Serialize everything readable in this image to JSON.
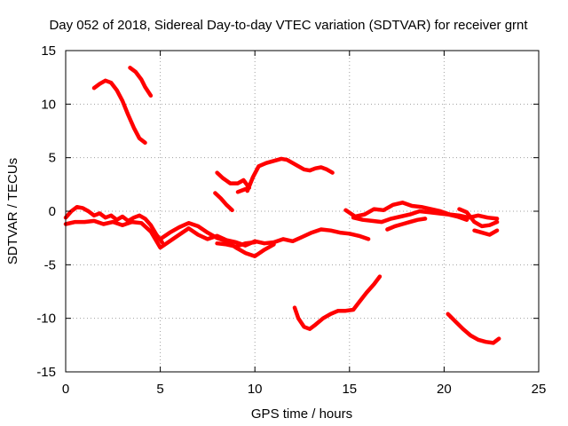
{
  "chart_data": {
    "type": "line",
    "title": "Day 052 of 2018, Sidereal Day-to-day VTEC variation (SDTVAR) for receiver grnt",
    "xlabel": "GPS time / hours",
    "ylabel": "SDTVAR / TECUs",
    "xlim": [
      0,
      25
    ],
    "ylim": [
      -15,
      15
    ],
    "xticks": [
      0,
      5,
      10,
      15,
      20,
      25
    ],
    "yticks": [
      -15,
      -10,
      -5,
      0,
      5,
      10,
      15
    ],
    "grid": true,
    "line_color": "#ff0000",
    "series": [
      {
        "name": "arc-1",
        "x": [
          1.5,
          1.8,
          2.1,
          2.4,
          2.7,
          3.0,
          3.3,
          3.6,
          3.9,
          4.2
        ],
        "y": [
          11.5,
          11.9,
          12.2,
          12.0,
          11.3,
          10.3,
          9.0,
          7.8,
          6.8,
          6.4
        ]
      },
      {
        "name": "arc-2",
        "x": [
          3.4,
          3.7,
          4.0,
          4.2,
          4.5
        ],
        "y": [
          13.4,
          13.0,
          12.3,
          11.6,
          10.8
        ]
      },
      {
        "name": "arc-3",
        "x": [
          8.0,
          8.3,
          8.7,
          9.1,
          9.4,
          9.7,
          9.4,
          9.1
        ],
        "y": [
          3.6,
          3.1,
          2.6,
          2.6,
          2.9,
          2.2,
          2.0,
          1.8
        ]
      },
      {
        "name": "arc-4",
        "x": [
          7.9,
          8.2,
          8.5,
          8.8
        ],
        "y": [
          1.7,
          1.2,
          0.6,
          0.1
        ]
      },
      {
        "name": "arc-5",
        "x": [
          9.6,
          9.9,
          10.2,
          10.6,
          11.0,
          11.4,
          11.7,
          12.0,
          12.3,
          12.6,
          12.9,
          13.2,
          13.5,
          13.8,
          14.1
        ],
        "y": [
          1.9,
          3.2,
          4.2,
          4.5,
          4.7,
          4.9,
          4.8,
          4.5,
          4.2,
          3.9,
          3.8,
          4.0,
          4.1,
          3.9,
          3.6
        ]
      },
      {
        "name": "arc-6",
        "x": [
          0.0,
          0.5,
          1.0,
          1.5,
          2.0,
          2.5,
          3.0,
          3.5,
          4.0,
          4.5,
          5.0,
          5.5,
          6.0,
          6.5,
          7.0,
          7.5,
          8.0,
          8.5,
          9.0,
          9.5,
          10.0,
          10.5,
          11.0,
          11.5,
          12.0,
          12.5,
          13.0,
          13.5,
          14.0,
          14.5,
          15.0,
          15.5,
          16.0
        ],
        "y": [
          -1.2,
          -1.0,
          -1.0,
          -0.9,
          -1.2,
          -1.0,
          -1.3,
          -1.0,
          -1.1,
          -1.9,
          -3.4,
          -2.8,
          -2.2,
          -1.6,
          -2.2,
          -2.6,
          -2.3,
          -2.7,
          -2.9,
          -3.2,
          -2.8,
          -3.0,
          -2.9,
          -2.6,
          -2.8,
          -2.4,
          -2.0,
          -1.7,
          -1.8,
          -2.0,
          -2.1,
          -2.3,
          -2.6
        ]
      },
      {
        "name": "arc-7",
        "x": [
          0.0,
          0.3,
          0.6,
          0.9,
          1.2,
          1.5,
          1.8,
          2.1,
          2.4,
          2.7,
          3.0,
          3.3,
          3.6,
          3.9,
          4.2,
          4.5,
          4.8,
          5.1
        ],
        "y": [
          -0.6,
          0.0,
          0.4,
          0.3,
          0.0,
          -0.4,
          -0.2,
          -0.6,
          -0.4,
          -0.8,
          -0.5,
          -0.9,
          -0.6,
          -0.4,
          -0.7,
          -1.3,
          -2.2,
          -2.9
        ]
      },
      {
        "name": "arc-8",
        "x": [
          5.0,
          5.5,
          6.0,
          6.5,
          7.0,
          7.5,
          8.0,
          8.5,
          9.0,
          9.5,
          10.0,
          10.5,
          11.0
        ],
        "y": [
          -2.6,
          -2.0,
          -1.5,
          -1.1,
          -1.4,
          -2.0,
          -2.5,
          -2.8,
          -3.4,
          -3.9,
          -4.2,
          -3.6,
          -3.1
        ]
      },
      {
        "name": "arc-9",
        "x": [
          8.0,
          8.5,
          9.0,
          9.5,
          10.0
        ],
        "y": [
          -3.0,
          -3.1,
          -3.3,
          -3.0,
          -2.9
        ]
      },
      {
        "name": "arc-10",
        "x": [
          12.1,
          12.3,
          12.6,
          12.9,
          13.2,
          13.6,
          14.0,
          14.4,
          14.8,
          15.2,
          15.5,
          15.9,
          16.3,
          16.6
        ],
        "y": [
          -9.0,
          -10.0,
          -10.8,
          -11.0,
          -10.6,
          -10.0,
          -9.6,
          -9.3,
          -9.3,
          -9.2,
          -8.5,
          -7.6,
          -6.8,
          -6.1
        ]
      },
      {
        "name": "arc-11",
        "x": [
          14.8,
          15.3,
          15.8,
          16.3,
          16.8,
          17.3,
          17.8,
          18.3,
          18.8,
          19.3,
          19.8,
          20.3,
          20.8,
          21.3,
          21.8,
          22.3,
          22.8
        ],
        "y": [
          0.1,
          -0.5,
          -0.3,
          0.2,
          0.1,
          0.6,
          0.8,
          0.5,
          0.4,
          0.2,
          0.0,
          -0.3,
          -0.4,
          -0.6,
          -0.4,
          -0.6,
          -0.7
        ]
      },
      {
        "name": "arc-12",
        "x": [
          15.2,
          15.7,
          16.2,
          16.7,
          17.2,
          17.7,
          18.2,
          18.7,
          19.2,
          19.7,
          20.2,
          20.7,
          21.2
        ],
        "y": [
          -0.6,
          -0.8,
          -0.9,
          -1.0,
          -0.7,
          -0.5,
          -0.3,
          0.0,
          -0.1,
          -0.2,
          -0.3,
          -0.5,
          -0.8
        ]
      },
      {
        "name": "arc-13",
        "x": [
          17.0,
          17.4,
          17.8,
          18.2,
          18.6,
          19.0
        ],
        "y": [
          -1.7,
          -1.4,
          -1.2,
          -1.0,
          -0.8,
          -0.7
        ]
      },
      {
        "name": "arc-14",
        "x": [
          20.8,
          21.2,
          21.6,
          22.0,
          22.4,
          22.8
        ],
        "y": [
          0.2,
          -0.1,
          -1.0,
          -1.4,
          -1.3,
          -1.0
        ]
      },
      {
        "name": "arc-15",
        "x": [
          21.6,
          22.0,
          22.4,
          22.8
        ],
        "y": [
          -1.8,
          -2.0,
          -2.2,
          -1.8
        ]
      },
      {
        "name": "arc-16",
        "x": [
          20.2,
          20.6,
          21.0,
          21.4,
          21.8,
          22.2,
          22.6,
          22.9
        ],
        "y": [
          -9.6,
          -10.3,
          -11.0,
          -11.6,
          -12.0,
          -12.2,
          -12.3,
          -11.9
        ]
      }
    ]
  }
}
